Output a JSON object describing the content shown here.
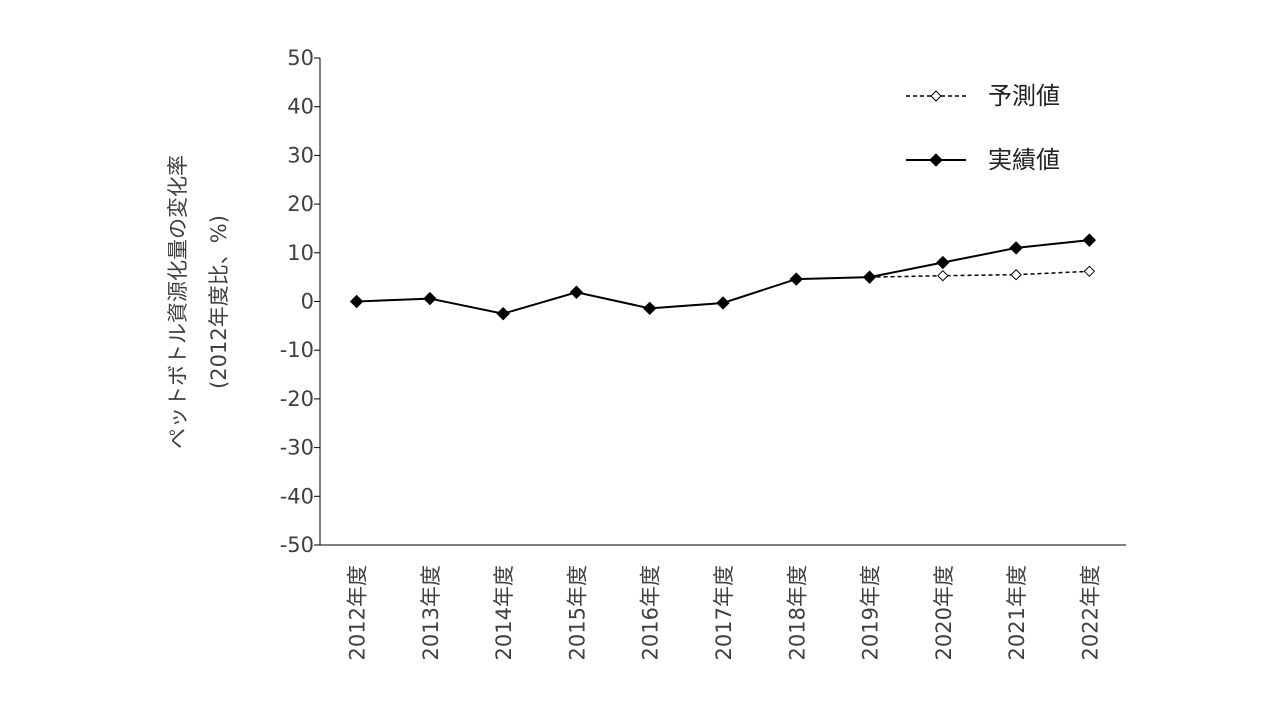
{
  "chart_data": {
    "type": "line",
    "categories": [
      "2012年度",
      "2013年度",
      "2014年度",
      "2015年度",
      "2016年度",
      "2017年度",
      "2018年度",
      "2019年度",
      "2020年度",
      "2021年度",
      "2022年度"
    ],
    "series": [
      {
        "name": "予測値",
        "style": "dashed",
        "marker": "diamond-open",
        "color": "#000000",
        "x": [
          "2019年度",
          "2020年度",
          "2021年度",
          "2022年度"
        ],
        "values": [
          5.0,
          5.3,
          5.5,
          6.2
        ]
      },
      {
        "name": "実績値",
        "style": "solid",
        "marker": "diamond-filled",
        "color": "#000000",
        "x": [
          "2012年度",
          "2013年度",
          "2014年度",
          "2015年度",
          "2016年度",
          "2017年度",
          "2018年度",
          "2019年度",
          "2020年度",
          "2021年度",
          "2022年度"
        ],
        "values": [
          0.0,
          0.6,
          -2.5,
          1.9,
          -1.4,
          -0.3,
          4.6,
          5.0,
          8.0,
          11.0,
          12.6
        ]
      }
    ],
    "ylabel_line1": "ペットボトル資源化量の変化率",
    "ylabel_line2": "(2012年度比、%)",
    "xlabel": "",
    "title": "",
    "ylim": [
      -50,
      50
    ],
    "yticks": [
      50,
      40,
      30,
      20,
      10,
      0,
      -10,
      -20,
      -30,
      -40,
      -50
    ],
    "grid": false,
    "legend_position": "top-right"
  }
}
